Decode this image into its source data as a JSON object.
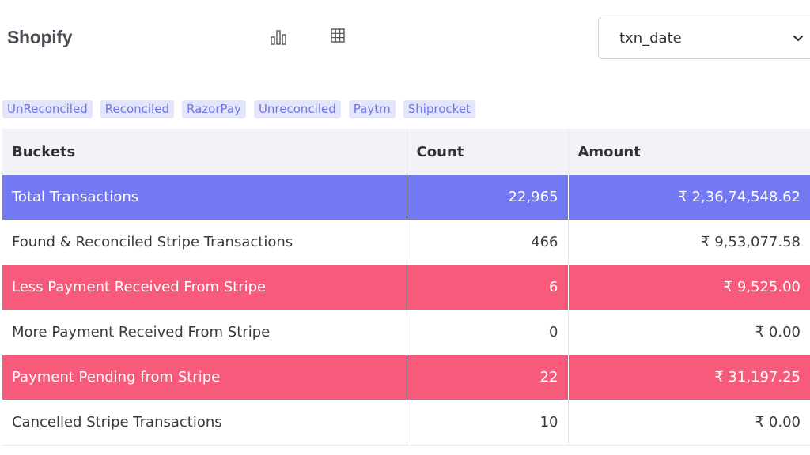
{
  "header": {
    "title": "Shopify",
    "chart_view_icon": "bar-chart-icon",
    "table_view_icon": "table-grid-icon"
  },
  "date_field": {
    "selected": "txn_date",
    "icon": "chevron-down-icon"
  },
  "tags": [
    "UnReconciled",
    "Reconciled",
    "RazorPay",
    "Unreconciled",
    "Paytm",
    "Shiprocket"
  ],
  "table": {
    "columns": [
      "Buckets",
      "Count",
      "Amount"
    ],
    "rows": [
      {
        "bucket": "Total Transactions",
        "count": "22,965",
        "amount": "₹ 2,36,74,548.62",
        "highlight": "blue"
      },
      {
        "bucket": "Found & Reconciled Stripe Transactions",
        "count": "466",
        "amount": "₹ 9,53,077.58",
        "highlight": "none"
      },
      {
        "bucket": "Less Payment Received From Stripe",
        "count": "6",
        "amount": "₹ 9,525.00",
        "highlight": "red"
      },
      {
        "bucket": "More Payment Received From Stripe",
        "count": "0",
        "amount": "₹ 0.00",
        "highlight": "none"
      },
      {
        "bucket": "Payment Pending from Stripe",
        "count": "22",
        "amount": "₹ 31,197.25",
        "highlight": "red"
      },
      {
        "bucket": "Cancelled Stripe Transactions",
        "count": "10",
        "amount": "₹ 0.00",
        "highlight": "none"
      }
    ]
  },
  "colors": {
    "highlight_blue": "#7378f3",
    "highlight_red": "#f85a7b",
    "tag_bg": "#e3e5fb",
    "tag_text": "#6f77e6",
    "header_bg": "#f1f3f9"
  }
}
